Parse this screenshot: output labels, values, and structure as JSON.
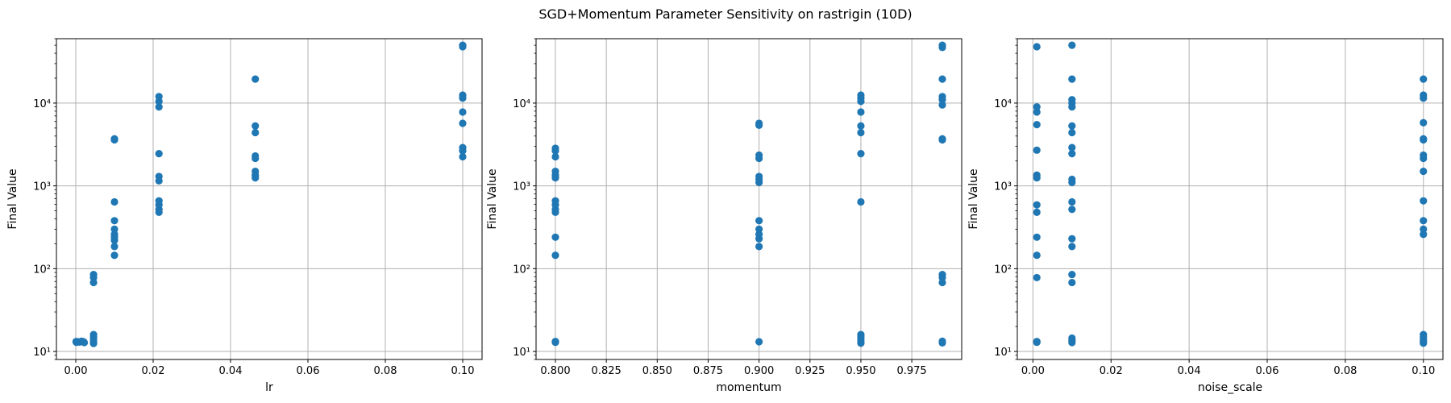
{
  "figure": {
    "title": "SGD+Momentum Parameter Sensitivity on rastrigin (10D)"
  },
  "colors": {
    "points": "#1f77b4",
    "grid": "#b0b0b0",
    "axes": "#000000"
  },
  "chart_data": [
    {
      "type": "scatter",
      "xlabel": "lr",
      "ylabel": "Final Value",
      "yscale": "log",
      "grid": true,
      "xlim": [
        -0.005,
        0.105
      ],
      "ylim": [
        8,
        60000
      ],
      "xticks": [
        0.0,
        0.02,
        0.04,
        0.06,
        0.08,
        0.1
      ],
      "xtick_labels": [
        "0.00",
        "0.02",
        "0.04",
        "0.06",
        "0.08",
        "0.10"
      ],
      "yticks": [
        10,
        100,
        1000,
        10000
      ],
      "ytick_labels": [
        "10¹",
        "10²",
        "10³",
        "10⁴"
      ],
      "points": [
        [
          0.0001,
          13
        ],
        [
          0.0001,
          13.2
        ],
        [
          0.0002,
          12.9
        ],
        [
          0.0005,
          13.1
        ],
        [
          0.001,
          13
        ],
        [
          0.0015,
          13.3
        ],
        [
          0.002,
          13.1
        ],
        [
          0.0022,
          12.8
        ],
        [
          0.0046,
          85
        ],
        [
          0.0046,
          78
        ],
        [
          0.0046,
          68
        ],
        [
          0.0046,
          16
        ],
        [
          0.0046,
          15
        ],
        [
          0.0046,
          14
        ],
        [
          0.0046,
          13
        ],
        [
          0.0046,
          12.5
        ],
        [
          0.01,
          3700
        ],
        [
          0.01,
          3600
        ],
        [
          0.01,
          640
        ],
        [
          0.01,
          380
        ],
        [
          0.01,
          300
        ],
        [
          0.01,
          260
        ],
        [
          0.01,
          240
        ],
        [
          0.01,
          220
        ],
        [
          0.01,
          185
        ],
        [
          0.01,
          145
        ],
        [
          0.0215,
          12000
        ],
        [
          0.0215,
          10500
        ],
        [
          0.0215,
          9000
        ],
        [
          0.0215,
          2450
        ],
        [
          0.0215,
          1300
        ],
        [
          0.0215,
          1150
        ],
        [
          0.0215,
          660
        ],
        [
          0.0215,
          590
        ],
        [
          0.0215,
          520
        ],
        [
          0.0215,
          480
        ],
        [
          0.0464,
          19500
        ],
        [
          0.0464,
          5300
        ],
        [
          0.0464,
          4400
        ],
        [
          0.0464,
          2300
        ],
        [
          0.0464,
          2150
        ],
        [
          0.0464,
          1500
        ],
        [
          0.0464,
          1350
        ],
        [
          0.0464,
          1250
        ],
        [
          0.1,
          50000
        ],
        [
          0.1,
          48000
        ],
        [
          0.1,
          12500
        ],
        [
          0.1,
          11500
        ],
        [
          0.1,
          7800
        ],
        [
          0.1,
          5700
        ],
        [
          0.1,
          2900
        ],
        [
          0.1,
          2650
        ],
        [
          0.1,
          2250
        ]
      ]
    },
    {
      "type": "scatter",
      "xlabel": "momentum",
      "ylabel": "Final Value",
      "yscale": "log",
      "grid": true,
      "xlim": [
        0.7905,
        0.9995
      ],
      "ylim": [
        8,
        60000
      ],
      "xticks": [
        0.8,
        0.825,
        0.85,
        0.875,
        0.9,
        0.925,
        0.95,
        0.975
      ],
      "xtick_labels": [
        "0.800",
        "0.825",
        "0.850",
        "0.875",
        "0.900",
        "0.925",
        "0.950",
        "0.975"
      ],
      "yticks": [
        10,
        100,
        1000,
        10000
      ],
      "ytick_labels": [
        "10¹",
        "10²",
        "10³",
        "10⁴"
      ],
      "points": [
        [
          0.8,
          2850
        ],
        [
          0.8,
          2650
        ],
        [
          0.8,
          2250
        ],
        [
          0.8,
          1500
        ],
        [
          0.8,
          1350
        ],
        [
          0.8,
          1250
        ],
        [
          0.8,
          660
        ],
        [
          0.8,
          590
        ],
        [
          0.8,
          520
        ],
        [
          0.8,
          480
        ],
        [
          0.8,
          240
        ],
        [
          0.8,
          145
        ],
        [
          0.8,
          13.2
        ],
        [
          0.8,
          12.9
        ],
        [
          0.9,
          5700
        ],
        [
          0.9,
          5400
        ],
        [
          0.9,
          2350
        ],
        [
          0.9,
          2150
        ],
        [
          0.9,
          1300
        ],
        [
          0.9,
          1200
        ],
        [
          0.9,
          1100
        ],
        [
          0.9,
          380
        ],
        [
          0.9,
          300
        ],
        [
          0.9,
          260
        ],
        [
          0.9,
          230
        ],
        [
          0.9,
          185
        ],
        [
          0.9,
          13.1
        ],
        [
          0.95,
          12500
        ],
        [
          0.95,
          11500
        ],
        [
          0.95,
          10500
        ],
        [
          0.95,
          7800
        ],
        [
          0.95,
          5300
        ],
        [
          0.95,
          4400
        ],
        [
          0.95,
          2450
        ],
        [
          0.95,
          640
        ],
        [
          0.95,
          16
        ],
        [
          0.95,
          15
        ],
        [
          0.95,
          14
        ],
        [
          0.95,
          13
        ],
        [
          0.95,
          12.6
        ],
        [
          0.99,
          50000
        ],
        [
          0.99,
          47000
        ],
        [
          0.99,
          19500
        ],
        [
          0.99,
          12000
        ],
        [
          0.99,
          11000
        ],
        [
          0.99,
          9500
        ],
        [
          0.99,
          3700
        ],
        [
          0.99,
          3600
        ],
        [
          0.99,
          85
        ],
        [
          0.99,
          78
        ],
        [
          0.99,
          68
        ],
        [
          0.99,
          13.3
        ],
        [
          0.99,
          12.7
        ]
      ]
    },
    {
      "type": "scatter",
      "xlabel": "noise_scale",
      "ylabel": "Final Value",
      "yscale": "log",
      "grid": true,
      "xlim": [
        -0.004,
        0.105
      ],
      "ylim": [
        8,
        60000
      ],
      "xticks": [
        0.0,
        0.02,
        0.04,
        0.06,
        0.08,
        0.1
      ],
      "xtick_labels": [
        "0.00",
        "0.02",
        "0.04",
        "0.06",
        "0.08",
        "0.10"
      ],
      "yticks": [
        10,
        100,
        1000,
        10000
      ],
      "ytick_labels": [
        "10¹",
        "10²",
        "10³",
        "10⁴"
      ],
      "points": [
        [
          0.001,
          48000
        ],
        [
          0.001,
          9000
        ],
        [
          0.001,
          7800
        ],
        [
          0.001,
          5500
        ],
        [
          0.001,
          2700
        ],
        [
          0.001,
          1350
        ],
        [
          0.001,
          1250
        ],
        [
          0.001,
          590
        ],
        [
          0.001,
          480
        ],
        [
          0.001,
          240
        ],
        [
          0.001,
          145
        ],
        [
          0.001,
          78
        ],
        [
          0.001,
          13.2
        ],
        [
          0.001,
          12.9
        ],
        [
          0.01,
          50000
        ],
        [
          0.01,
          19500
        ],
        [
          0.01,
          11000
        ],
        [
          0.01,
          10000
        ],
        [
          0.01,
          9000
        ],
        [
          0.01,
          5300
        ],
        [
          0.01,
          4400
        ],
        [
          0.01,
          2900
        ],
        [
          0.01,
          2450
        ],
        [
          0.01,
          1200
        ],
        [
          0.01,
          1100
        ],
        [
          0.01,
          640
        ],
        [
          0.01,
          520
        ],
        [
          0.01,
          230
        ],
        [
          0.01,
          185
        ],
        [
          0.01,
          85
        ],
        [
          0.01,
          68
        ],
        [
          0.01,
          14.5
        ],
        [
          0.01,
          13.5
        ],
        [
          0.01,
          12.8
        ],
        [
          0.1,
          19500
        ],
        [
          0.1,
          12500
        ],
        [
          0.1,
          11500
        ],
        [
          0.1,
          5800
        ],
        [
          0.1,
          3700
        ],
        [
          0.1,
          3600
        ],
        [
          0.1,
          2350
        ],
        [
          0.1,
          2150
        ],
        [
          0.1,
          1500
        ],
        [
          0.1,
          660
        ],
        [
          0.1,
          380
        ],
        [
          0.1,
          300
        ],
        [
          0.1,
          260
        ],
        [
          0.1,
          16
        ],
        [
          0.1,
          15
        ],
        [
          0.1,
          14
        ],
        [
          0.1,
          13.2
        ],
        [
          0.1,
          12.6
        ]
      ]
    }
  ]
}
